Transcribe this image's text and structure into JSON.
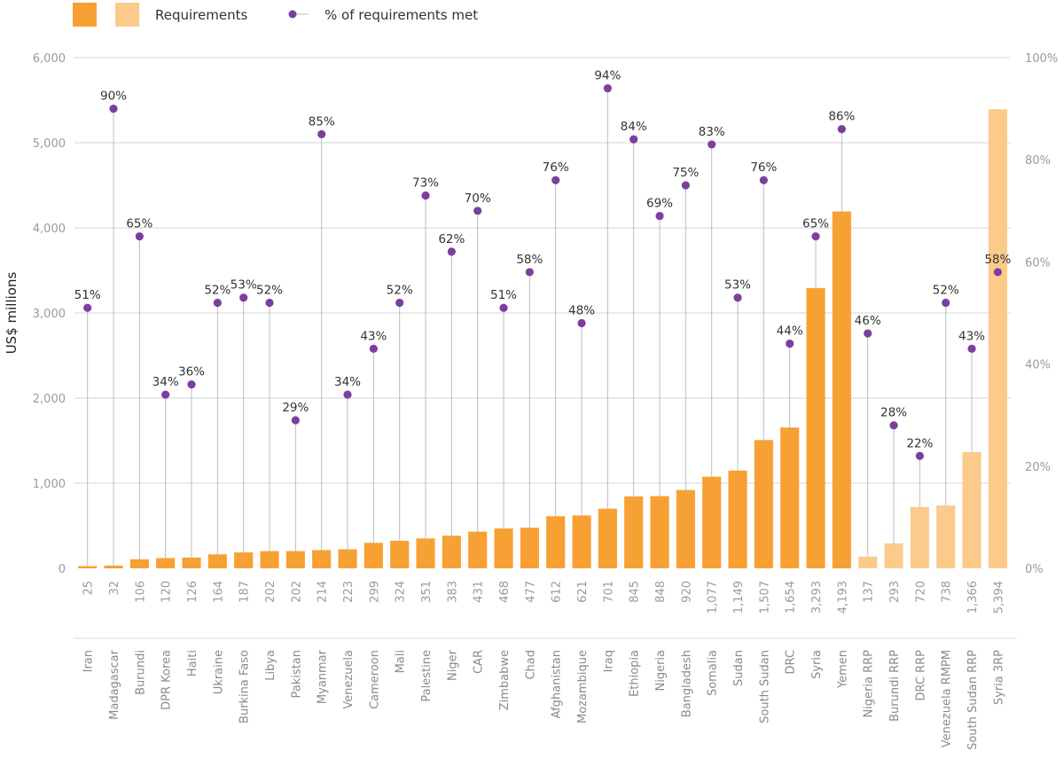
{
  "chart_data": {
    "type": "bar",
    "ylabel": "US$ millions",
    "ylim": [
      0,
      6000
    ],
    "y_ticks": [
      "0",
      "1,000",
      "2,000",
      "3,000",
      "4,000",
      "5,000",
      "6,000"
    ],
    "y2lim": [
      0,
      100
    ],
    "y2_ticks": [
      "0%",
      "20%",
      "40%",
      "60%",
      "80%",
      "100%"
    ],
    "grid": true,
    "legend": {
      "placement": "top-left",
      "requirements_label": "Requirements",
      "pct_label": "% of requirements met"
    },
    "colors": {
      "bar": "#f7a033",
      "bar_light": "#fcca8a",
      "dot": "#7b3f9e",
      "stem": "#bdbdbd",
      "grid": "#d4d4d4"
    },
    "categories": [
      "Iran",
      "Madagascar",
      "Burundi",
      "DPR Korea",
      "Haiti",
      "Ukraine",
      "Burkina Faso",
      "Libya",
      "Pakistan",
      "Myanmar",
      "Venezuela",
      "Cameroon",
      "Mali",
      "Palestine",
      "Niger",
      "CAR",
      "Zimbabwe",
      "Chad",
      "Afghanistan",
      "Mozambique",
      "Iraq",
      "Ethiopia",
      "Nigeria",
      "Bangladesh",
      "Somalia",
      "Sudan",
      "South Sudan",
      "DRC",
      "Syria",
      "Yemen",
      "Nigeria RRP",
      "Burundi RRP",
      "DRC RRP",
      "Venezuela RMPM",
      "South Sudan RRP",
      "Syria 3RP"
    ],
    "value_labels": [
      "25",
      "32",
      "106",
      "120",
      "126",
      "164",
      "187",
      "202",
      "202",
      "214",
      "223",
      "299",
      "324",
      "351",
      "383",
      "431",
      "468",
      "477",
      "612",
      "621",
      "701",
      "845",
      "848",
      "920",
      "1,077",
      "1,149",
      "1,507",
      "1,654",
      "3,293",
      "4,193",
      "137",
      "293",
      "720",
      "738",
      "1,366",
      "5,394"
    ],
    "pct_labels": [
      "51%",
      "90%",
      "65%",
      "34%",
      "36%",
      "52%",
      "53%",
      "52%",
      "29%",
      "85%",
      "34%",
      "43%",
      "52%",
      "73%",
      "62%",
      "70%",
      "51%",
      "58%",
      "76%",
      "48%",
      "94%",
      "84%",
      "69%",
      "75%",
      "83%",
      "53%",
      "76%",
      "44%",
      "65%",
      "86%",
      "46%",
      "28%",
      "22%",
      "52%",
      "43%",
      "58%"
    ],
    "series": [
      {
        "name": "Requirements",
        "values": [
          25,
          32,
          106,
          120,
          126,
          164,
          187,
          202,
          202,
          214,
          223,
          299,
          324,
          351,
          383,
          431,
          468,
          477,
          612,
          621,
          701,
          845,
          848,
          920,
          1077,
          1149,
          1507,
          1654,
          3293,
          4193,
          137,
          293,
          720,
          738,
          1366,
          5394
        ],
        "light": [
          false,
          false,
          false,
          false,
          false,
          false,
          false,
          false,
          false,
          false,
          false,
          false,
          false,
          false,
          false,
          false,
          false,
          false,
          false,
          false,
          false,
          false,
          false,
          false,
          false,
          false,
          false,
          false,
          false,
          false,
          true,
          true,
          true,
          true,
          true,
          true
        ]
      },
      {
        "name": "% of requirements met",
        "axis": "right",
        "values": [
          51,
          90,
          65,
          34,
          36,
          52,
          53,
          52,
          29,
          85,
          34,
          43,
          52,
          73,
          62,
          70,
          51,
          58,
          76,
          48,
          94,
          84,
          69,
          75,
          83,
          53,
          76,
          44,
          65,
          86,
          46,
          28,
          22,
          52,
          43,
          58
        ]
      }
    ]
  }
}
